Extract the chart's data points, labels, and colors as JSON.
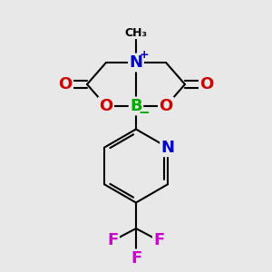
{
  "background_color": "#e8e8e8",
  "atom_colors": {
    "C": "#000000",
    "N": "#0000cc",
    "B": "#00aa00",
    "O": "#cc0000",
    "F": "#cc00cc",
    "N_pyridine": "#0000cc",
    "plus": "#0000cc",
    "minus": "#00aa00"
  },
  "bond_color": "#000000",
  "bond_width": 1.5,
  "font_size_atom": 13,
  "fig_bg": "#e8e8e8"
}
